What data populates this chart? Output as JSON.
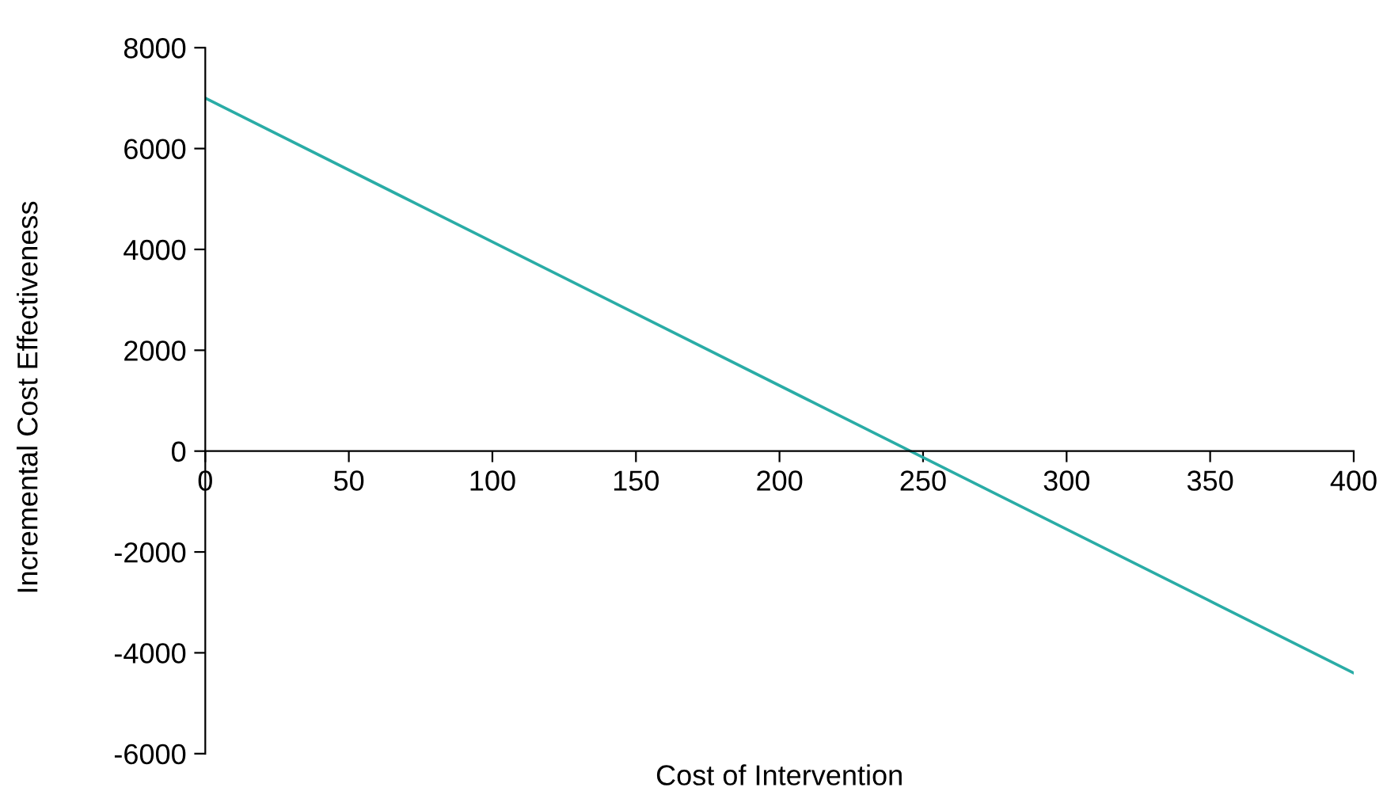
{
  "chart_data": {
    "type": "line",
    "xlabel": "Cost of Intervention",
    "ylabel": "Incremental Cost Effectiveness",
    "x": [
      0,
      400
    ],
    "series": [
      {
        "color": "#2aaca6",
        "values": [
          7000,
          -4400
        ]
      }
    ],
    "xlim": [
      0,
      400
    ],
    "xticks": [
      0,
      50,
      100,
      150,
      200,
      250,
      300,
      350,
      400
    ],
    "ylim": [
      -6000,
      8000
    ],
    "yticks": [
      -6000,
      -4000,
      -2000,
      0,
      2000,
      4000,
      6000,
      8000
    ],
    "grid": false,
    "legend": false,
    "marker": "none",
    "line_style": "solid"
  }
}
